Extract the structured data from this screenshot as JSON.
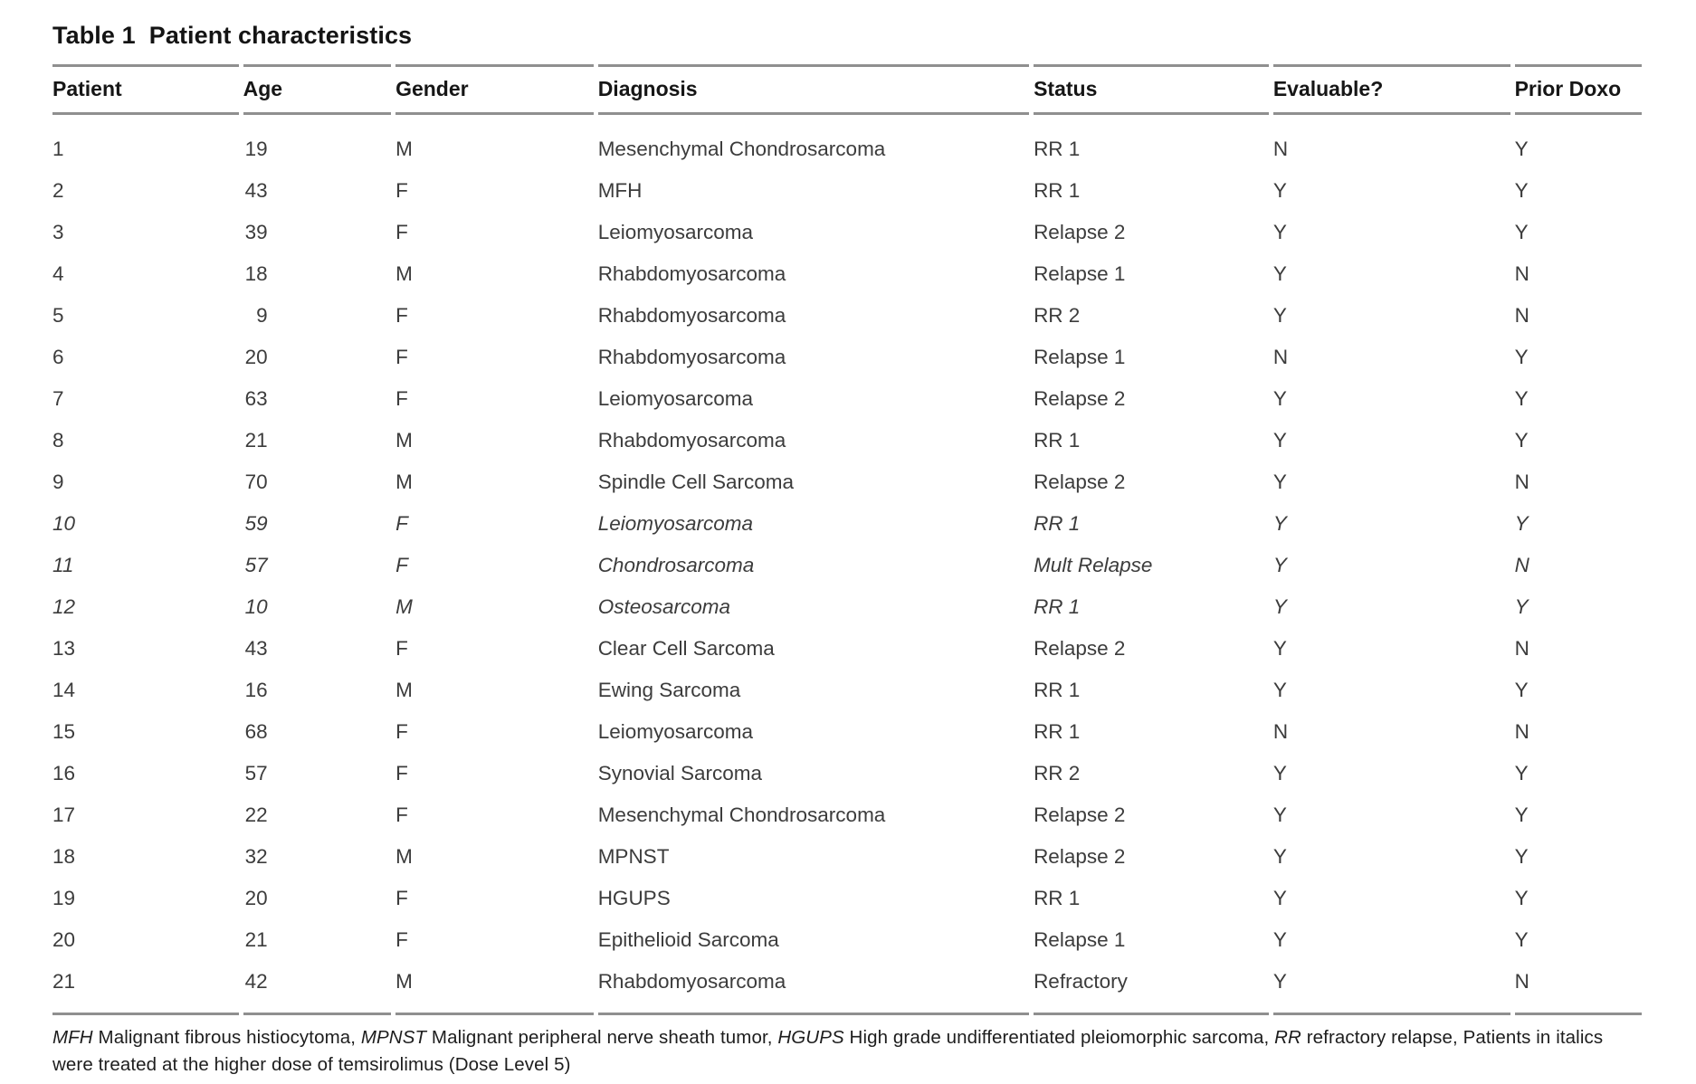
{
  "table": {
    "label": "Table 1",
    "title": "Patient characteristics",
    "columns": [
      "Patient",
      "Age",
      "Gender",
      "Diagnosis",
      "Status",
      "Evaluable?",
      "Prior Doxo"
    ],
    "rows": [
      {
        "patient": "1",
        "age": "19",
        "gender": "M",
        "diagnosis": "Mesenchymal Chondrosarcoma",
        "status": "RR 1",
        "evaluable": "N",
        "prior_doxo": "Y",
        "italic": false
      },
      {
        "patient": "2",
        "age": "43",
        "gender": "F",
        "diagnosis": "MFH",
        "status": "RR 1",
        "evaluable": "Y",
        "prior_doxo": "Y",
        "italic": false
      },
      {
        "patient": "3",
        "age": "39",
        "gender": "F",
        "diagnosis": "Leiomyosarcoma",
        "status": "Relapse 2",
        "evaluable": "Y",
        "prior_doxo": "Y",
        "italic": false
      },
      {
        "patient": "4",
        "age": "18",
        "gender": "M",
        "diagnosis": "Rhabdomyosarcoma",
        "status": "Relapse 1",
        "evaluable": "Y",
        "prior_doxo": "N",
        "italic": false
      },
      {
        "patient": "5",
        "age": "9",
        "gender": "F",
        "diagnosis": "Rhabdomyosarcoma",
        "status": "RR 2",
        "evaluable": "Y",
        "prior_doxo": "N",
        "italic": false
      },
      {
        "patient": "6",
        "age": "20",
        "gender": "F",
        "diagnosis": "Rhabdomyosarcoma",
        "status": "Relapse 1",
        "evaluable": "N",
        "prior_doxo": "Y",
        "italic": false
      },
      {
        "patient": "7",
        "age": "63",
        "gender": "F",
        "diagnosis": "Leiomyosarcoma",
        "status": "Relapse 2",
        "evaluable": "Y",
        "prior_doxo": "Y",
        "italic": false
      },
      {
        "patient": "8",
        "age": "21",
        "gender": "M",
        "diagnosis": "Rhabdomyosarcoma",
        "status": "RR 1",
        "evaluable": "Y",
        "prior_doxo": "Y",
        "italic": false
      },
      {
        "patient": "9",
        "age": "70",
        "gender": "M",
        "diagnosis": "Spindle Cell Sarcoma",
        "status": "Relapse 2",
        "evaluable": "Y",
        "prior_doxo": "N",
        "italic": false
      },
      {
        "patient": "10",
        "age": "59",
        "gender": "F",
        "diagnosis": "Leiomyosarcoma",
        "status": "RR 1",
        "evaluable": "Y",
        "prior_doxo": "Y",
        "italic": true
      },
      {
        "patient": "11",
        "age": "57",
        "gender": "F",
        "diagnosis": "Chondrosarcoma",
        "status": "Mult Relapse",
        "evaluable": "Y",
        "prior_doxo": "N",
        "italic": true
      },
      {
        "patient": "12",
        "age": "10",
        "gender": "M",
        "diagnosis": "Osteosarcoma",
        "status": "RR 1",
        "evaluable": "Y",
        "prior_doxo": "Y",
        "italic": true
      },
      {
        "patient": "13",
        "age": "43",
        "gender": "F",
        "diagnosis": "Clear Cell Sarcoma",
        "status": "Relapse 2",
        "evaluable": "Y",
        "prior_doxo": "N",
        "italic": false
      },
      {
        "patient": "14",
        "age": "16",
        "gender": "M",
        "diagnosis": "Ewing Sarcoma",
        "status": "RR 1",
        "evaluable": "Y",
        "prior_doxo": "Y",
        "italic": false
      },
      {
        "patient": "15",
        "age": "68",
        "gender": "F",
        "diagnosis": "Leiomyosarcoma",
        "status": "RR 1",
        "evaluable": "N",
        "prior_doxo": "N",
        "italic": false
      },
      {
        "patient": "16",
        "age": "57",
        "gender": "F",
        "diagnosis": "Synovial Sarcoma",
        "status": "RR 2",
        "evaluable": "Y",
        "prior_doxo": "Y",
        "italic": false
      },
      {
        "patient": "17",
        "age": "22",
        "gender": "F",
        "diagnosis": "Mesenchymal Chondrosarcoma",
        "status": "Relapse 2",
        "evaluable": "Y",
        "prior_doxo": "Y",
        "italic": false
      },
      {
        "patient": "18",
        "age": "32",
        "gender": "M",
        "diagnosis": "MPNST",
        "status": "Relapse 2",
        "evaluable": "Y",
        "prior_doxo": "Y",
        "italic": false
      },
      {
        "patient": "19",
        "age": "20",
        "gender": "F",
        "diagnosis": "HGUPS",
        "status": "RR 1",
        "evaluable": "Y",
        "prior_doxo": "Y",
        "italic": false
      },
      {
        "patient": "20",
        "age": "21",
        "gender": "F",
        "diagnosis": "Epithelioid Sarcoma",
        "status": "Relapse 1",
        "evaluable": "Y",
        "prior_doxo": "Y",
        "italic": false
      },
      {
        "patient": "21",
        "age": "42",
        "gender": "M",
        "diagnosis": "Rhabdomyosarcoma",
        "status": "Refractory",
        "evaluable": "Y",
        "prior_doxo": "N",
        "italic": false
      }
    ],
    "footnote_segments": [
      {
        "text": "MFH",
        "italic": true
      },
      {
        "text": " Malignant fibrous histiocytoma, ",
        "italic": false
      },
      {
        "text": "MPNST",
        "italic": true
      },
      {
        "text": " Malignant peripheral nerve sheath tumor, ",
        "italic": false
      },
      {
        "text": "HGUPS",
        "italic": true
      },
      {
        "text": " High grade undifferentiated pleiomorphic sarcoma, ",
        "italic": false
      },
      {
        "text": "RR",
        "italic": true
      },
      {
        "text": " refractory relapse, Patients in italics were treated at the higher dose of temsirolimus (Dose Level 5)",
        "italic": false
      }
    ],
    "rule_color": "#8f8f8f",
    "text_color": "#3c3c3c",
    "heading_color": "#141414"
  }
}
